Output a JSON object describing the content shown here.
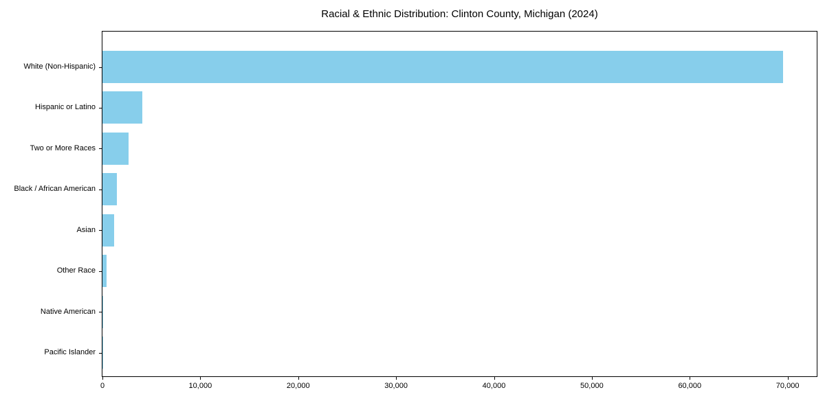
{
  "chart_data": {
    "type": "bar",
    "orientation": "horizontal",
    "title": "Racial & Ethnic Distribution: Clinton County, Michigan (2024)",
    "categories": [
      "White (Non-Hispanic)",
      "Hispanic or Latino",
      "Two or More Races",
      "Black / African American",
      "Asian",
      "Other Race",
      "Native American",
      "Pacific Islander"
    ],
    "values": [
      69500,
      4100,
      2700,
      1450,
      1200,
      450,
      100,
      25
    ],
    "xlabel": "",
    "ylabel": "",
    "xlim": [
      0,
      72975
    ],
    "xtick_values": [
      0,
      10000,
      20000,
      30000,
      40000,
      50000,
      60000,
      70000
    ],
    "xtick_labels": [
      "0",
      "10,000",
      "20,000",
      "30,000",
      "40,000",
      "50,000",
      "60,000",
      "70,000"
    ],
    "bar_color": "#87CEEB",
    "grid": false,
    "legend": "none"
  }
}
